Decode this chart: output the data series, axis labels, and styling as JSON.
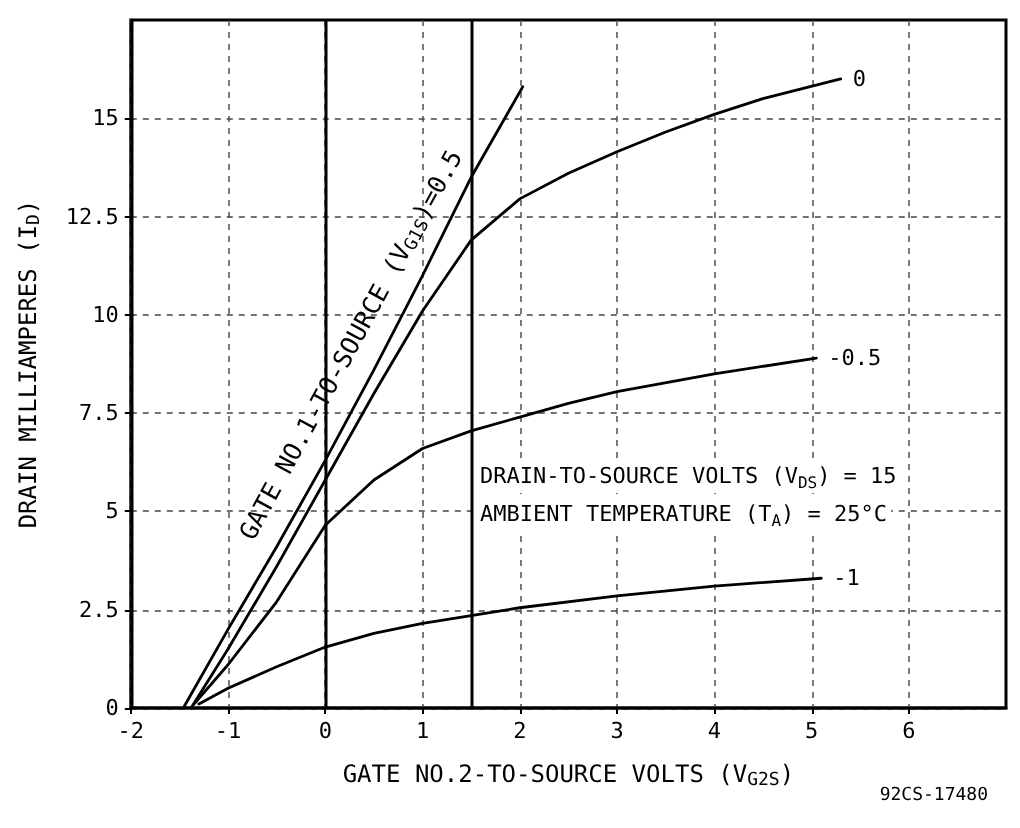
{
  "chart_data": {
    "type": "line",
    "xlabel": "GATE NO.2-TO-SOURCE VOLTS (V$_{G2S}$)",
    "ylabel": "DRAIN MILLIAMPERES (I$_{D}$)",
    "xlim": [
      -2,
      7
    ],
    "xticks": [
      -2,
      -1,
      0,
      1,
      2,
      3,
      4,
      5,
      6
    ],
    "ylim": [
      0,
      17.5
    ],
    "yticks": [
      0,
      2.5,
      5,
      7.5,
      10,
      12.5,
      15
    ],
    "grid": true,
    "legend": false,
    "marker": "none",
    "line_style": "solid",
    "ref_lines": [
      {
        "axis": "x",
        "value": 0,
        "color": "#000000"
      },
      {
        "axis": "x",
        "value": 1.5,
        "color": "#000000"
      }
    ],
    "annotations": [
      "DRAIN-TO-SOURCE VOLTS (V$_{DS}$) = 15",
      "AMBIENT TEMPERATURE (T$_{A}$) = 25°C",
      "92CS-17480"
    ],
    "series": [
      {
        "name": "GATE NO.1-TO-SOURCE (V$_{G1S}$)=0.5",
        "color": "#000000",
        "x": [
          -1.46,
          -1,
          -0.5,
          0,
          0.5,
          1,
          1.5,
          2.03
        ],
        "values": [
          0,
          2.0,
          4.1,
          6.3,
          8.6,
          11.0,
          13.5,
          15.8
        ]
      },
      {
        "name": "0",
        "color": "#000000",
        "x": [
          -1.38,
          -1,
          -0.5,
          0,
          0.5,
          1,
          1.5,
          2,
          2.5,
          3,
          3.5,
          4,
          4.5,
          5.3
        ],
        "values": [
          0,
          1.5,
          3.6,
          5.8,
          8.0,
          10.1,
          11.9,
          12.95,
          13.6,
          14.15,
          14.65,
          15.1,
          15.5,
          16.0
        ]
      },
      {
        "name": "-0.5",
        "color": "#000000",
        "x": [
          -1.35,
          -1,
          -0.5,
          0,
          0.5,
          1,
          1.5,
          2,
          2.5,
          3,
          4,
          5.05
        ],
        "values": [
          0.1,
          1.1,
          2.7,
          4.65,
          5.8,
          6.6,
          7.05,
          7.4,
          7.75,
          8.05,
          8.5,
          8.9
        ]
      },
      {
        "name": "-1",
        "color": "#000000",
        "x": [
          -1.3,
          -1,
          -0.5,
          0,
          0.5,
          1,
          1.5,
          2,
          3,
          4,
          5.1
        ],
        "values": [
          0.1,
          0.5,
          1.05,
          1.55,
          1.9,
          2.15,
          2.35,
          2.55,
          2.85,
          3.1,
          3.3
        ]
      }
    ]
  }
}
